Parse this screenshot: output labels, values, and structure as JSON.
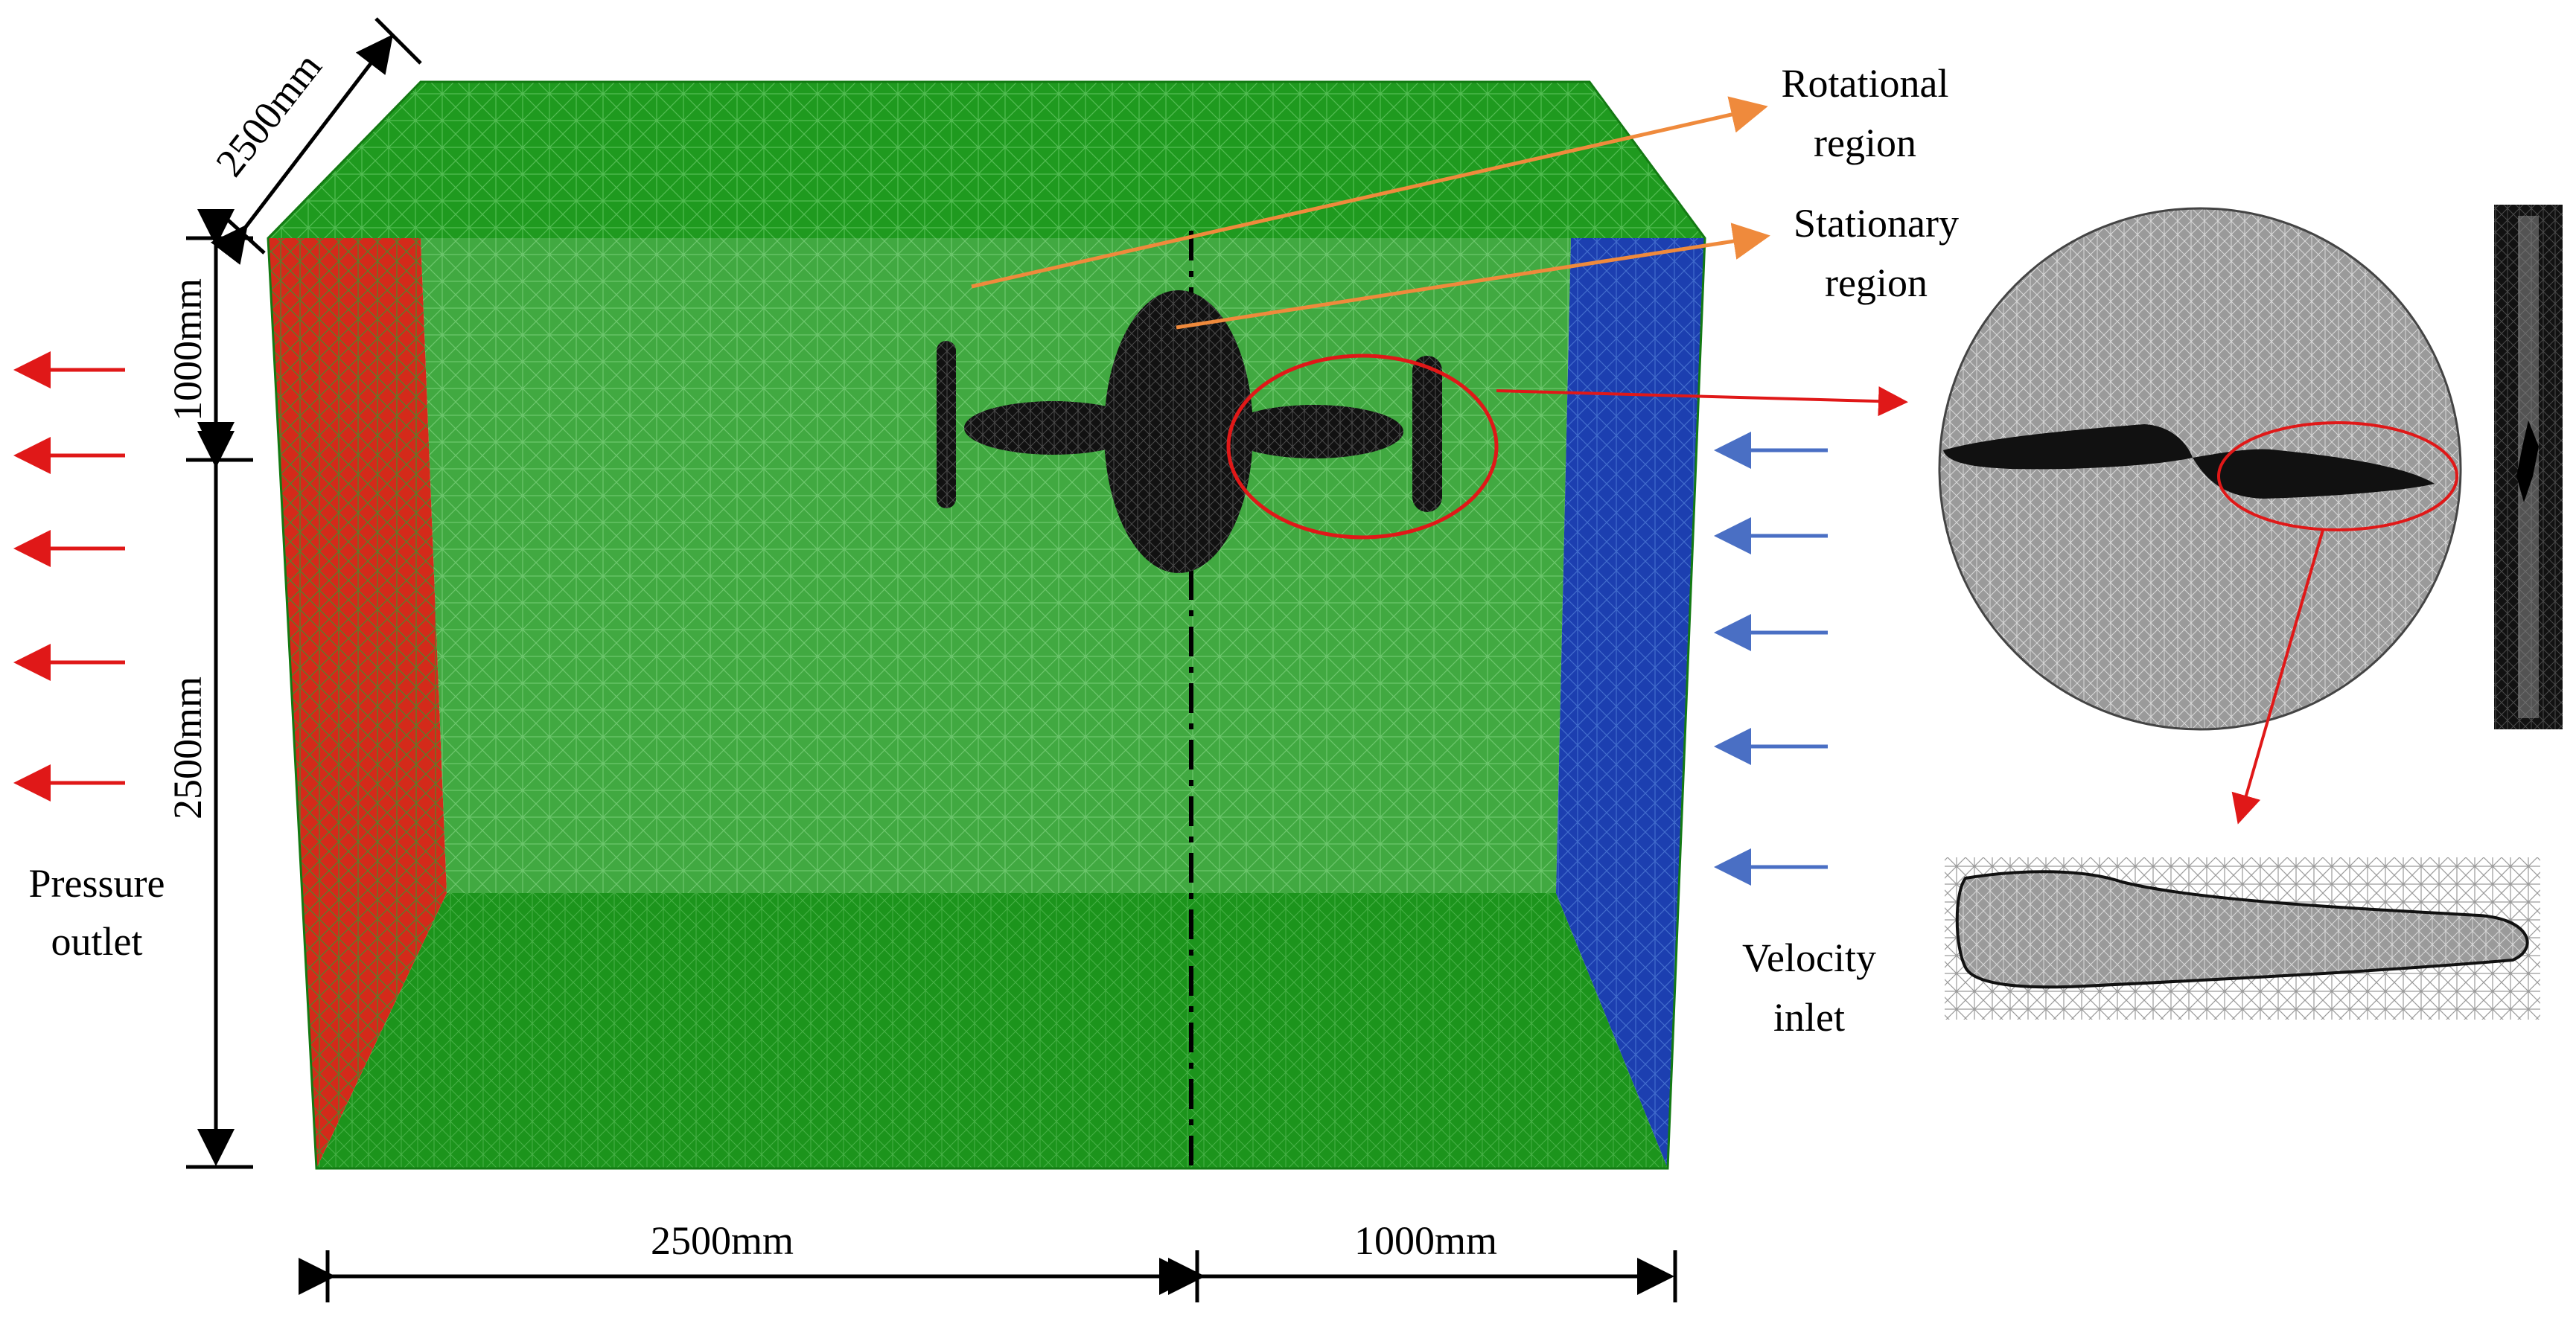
{
  "colors": {
    "mesh_green": "#1f9a1f",
    "mesh_green_dark": "#137a13",
    "outlet_red": "#d42a1a",
    "inlet_blue": "#1c3fb0",
    "annotation_orange": "#ef8a3c",
    "callout_red": "#e01818",
    "inlet_arrow_blue": "#4a6fc4",
    "mesh_gray": "#8a8a8a",
    "solid_black": "#111111"
  },
  "labels": {
    "rotational_line1": "Rotational",
    "rotational_line2": "region",
    "stationary_line1": "Stationary",
    "stationary_line2": "region",
    "outlet_line1": "Pressure",
    "outlet_line2": "outlet",
    "inlet_line1": "Velocity",
    "inlet_line2": "inlet"
  },
  "dimensions": {
    "depth": "2500mm",
    "height_upper": "1000mm",
    "height_lower": "2500mm",
    "length_downstream": "2500mm",
    "length_upstream": "1000mm"
  },
  "icons": {
    "propeller": "quadrotor-drone-icon",
    "rotor_disk": "rotor-disk-mesh-icon",
    "blade_section": "blade-section-mesh-icon",
    "side_view": "rotor-side-view-icon"
  }
}
